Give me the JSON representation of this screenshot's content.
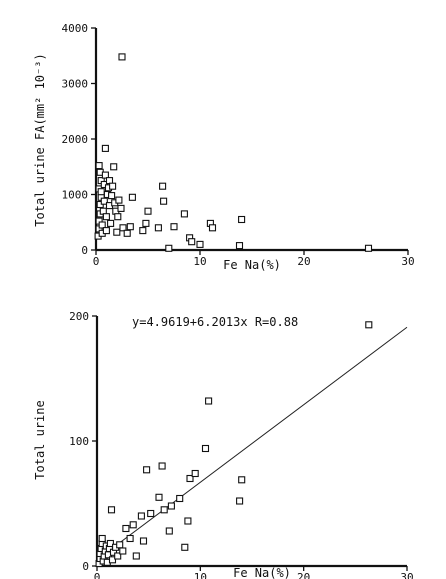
{
  "chart_data": [
    {
      "type": "scatter",
      "xlabel": "Fe Na(%)",
      "ylabel": "Total urine FA(mm² 10⁻³)",
      "xlim": [
        0,
        30
      ],
      "ylim": [
        0,
        4000
      ],
      "xticks": [
        "0",
        "10",
        "20",
        "30"
      ],
      "yticks": [
        "0",
        "1000",
        "2000",
        "3000",
        "4000"
      ],
      "points": [
        [
          0.2,
          250
        ],
        [
          0.3,
          380
        ],
        [
          0.3,
          520
        ],
        [
          0.4,
          650
        ],
        [
          0.4,
          820
        ],
        [
          0.5,
          950
        ],
        [
          0.3,
          1100
        ],
        [
          0.5,
          1250
        ],
        [
          0.4,
          1400
        ],
        [
          0.3,
          1520
        ],
        [
          0.5,
          1050
        ],
        [
          0.6,
          300
        ],
        [
          0.6,
          450
        ],
        [
          0.7,
          700
        ],
        [
          0.8,
          880
        ],
        [
          0.8,
          1180
        ],
        [
          0.9,
          1350
        ],
        [
          0.9,
          1830
        ],
        [
          1.0,
          350
        ],
        [
          1.0,
          600
        ],
        [
          1.1,
          1000
        ],
        [
          1.2,
          1120
        ],
        [
          1.3,
          800
        ],
        [
          1.3,
          1250
        ],
        [
          1.4,
          480
        ],
        [
          1.5,
          980
        ],
        [
          1.6,
          1150
        ],
        [
          1.7,
          1500
        ],
        [
          1.8,
          850
        ],
        [
          1.9,
          700
        ],
        [
          2.0,
          320
        ],
        [
          2.1,
          600
        ],
        [
          2.2,
          900
        ],
        [
          2.4,
          750
        ],
        [
          2.5,
          3480
        ],
        [
          2.6,
          400
        ],
        [
          3.0,
          300
        ],
        [
          3.3,
          420
        ],
        [
          3.5,
          950
        ],
        [
          4.5,
          350
        ],
        [
          4.8,
          480
        ],
        [
          5.0,
          700
        ],
        [
          6.0,
          400
        ],
        [
          6.4,
          1150
        ],
        [
          6.5,
          880
        ],
        [
          7.0,
          30
        ],
        [
          7.5,
          420
        ],
        [
          8.5,
          650
        ],
        [
          9.0,
          220
        ],
        [
          9.2,
          150
        ],
        [
          10.0,
          100
        ],
        [
          11.0,
          480
        ],
        [
          11.2,
          400
        ],
        [
          13.8,
          80
        ],
        [
          14.0,
          550
        ],
        [
          26.2,
          30
        ]
      ]
    },
    {
      "type": "scatter",
      "xlabel": "Fe Na(%)",
      "ylabel": "Total urine",
      "xlim": [
        0,
        30
      ],
      "ylim": [
        0,
        200
      ],
      "xticks": [
        "0",
        "10",
        "20",
        "30"
      ],
      "yticks": [
        "0",
        "100",
        "200"
      ],
      "annotation": "y=4.9619+6.2013x   R=0.88",
      "fit": {
        "intercept": 4.9619,
        "slope": 6.2013
      },
      "points": [
        [
          0.2,
          2
        ],
        [
          0.3,
          6
        ],
        [
          0.3,
          10
        ],
        [
          0.4,
          14
        ],
        [
          0.5,
          18
        ],
        [
          0.5,
          22
        ],
        [
          0.6,
          4
        ],
        [
          0.7,
          8
        ],
        [
          0.8,
          12
        ],
        [
          0.9,
          16
        ],
        [
          1.0,
          3
        ],
        [
          1.1,
          9
        ],
        [
          1.2,
          14
        ],
        [
          1.3,
          18
        ],
        [
          1.4,
          45
        ],
        [
          1.5,
          5
        ],
        [
          1.6,
          11
        ],
        [
          1.8,
          15
        ],
        [
          2.0,
          8
        ],
        [
          2.2,
          17
        ],
        [
          2.5,
          12
        ],
        [
          2.8,
          30
        ],
        [
          3.2,
          22
        ],
        [
          3.5,
          33
        ],
        [
          3.8,
          8
        ],
        [
          4.3,
          40
        ],
        [
          4.5,
          20
        ],
        [
          4.8,
          77
        ],
        [
          5.2,
          42
        ],
        [
          6.0,
          55
        ],
        [
          6.3,
          80
        ],
        [
          6.5,
          45
        ],
        [
          7.0,
          28
        ],
        [
          7.2,
          48
        ],
        [
          8.0,
          54
        ],
        [
          8.5,
          15
        ],
        [
          8.8,
          36
        ],
        [
          9.0,
          70
        ],
        [
          9.5,
          74
        ],
        [
          10.5,
          94
        ],
        [
          10.8,
          132
        ],
        [
          13.8,
          52
        ],
        [
          14.0,
          69
        ],
        [
          26.3,
          193
        ]
      ]
    }
  ]
}
